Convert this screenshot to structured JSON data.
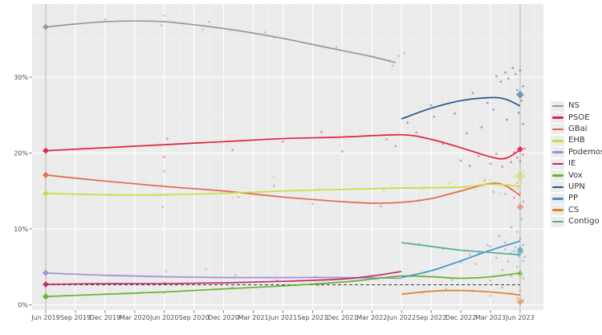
{
  "chart_data": {
    "type": "line",
    "title": "",
    "xlabel": "",
    "ylabel": "",
    "legend_position": "right",
    "panel": {
      "background": "#ebebeb",
      "grid_major": "#ffffff",
      "grid_minor": "#f4f4f4",
      "election_line_color": "#a9a9a9"
    },
    "x_axis": {
      "tick_labels": [
        "Jun 2019",
        "Sep 2019",
        "Dec 2019",
        "Mar 2020",
        "Jun 2020",
        "Sep 2020",
        "Dec 2020",
        "Mar 2021",
        "Jun 2021",
        "Sep 2021",
        "Dec 2021",
        "Mar 2022",
        "Jun 2022",
        "Sep 2022",
        "Dec 2022",
        "Mar 2023",
        "Jun 2023"
      ],
      "tick_values": [
        0,
        1,
        2,
        3,
        4,
        5,
        6,
        7,
        8,
        9,
        10,
        11,
        12,
        13,
        14,
        15,
        16
      ]
    },
    "y_axis": {
      "tick_labels": [
        "0%",
        "10%",
        "20%",
        "30%"
      ],
      "tick_values": [
        0,
        10,
        20,
        30
      ],
      "minor_values": [
        5,
        15,
        25,
        35
      ]
    },
    "ylim": [
      -0.7,
      39.6
    ],
    "threshold_line": {
      "value": 2.65,
      "style": "dashed",
      "color": "#3a3a3a",
      "from": 0,
      "to": 16
    },
    "election_lines": [
      0,
      16
    ],
    "series": [
      {
        "name": "NS",
        "color": "#8f9a9e",
        "start_marker": 36.6,
        "end_marker": null,
        "end_marker_size": 0,
        "trend": [
          [
            0,
            36.6
          ],
          [
            1,
            37.0
          ],
          [
            2,
            37.3
          ],
          [
            3,
            37.4
          ],
          [
            4,
            37.3
          ],
          [
            5,
            36.9
          ],
          [
            6,
            36.4
          ],
          [
            7,
            35.8
          ],
          [
            8,
            35.1
          ],
          [
            9,
            34.3
          ],
          [
            10,
            33.5
          ],
          [
            11,
            32.7
          ],
          [
            11.8,
            31.9
          ]
        ],
        "points": [
          [
            2.0,
            37.6
          ],
          [
            4.0,
            38.1
          ],
          [
            3.9,
            36.8
          ],
          [
            5.3,
            36.3
          ],
          [
            5.5,
            37.3
          ],
          [
            7.4,
            35.9
          ],
          [
            7.7,
            35.2
          ],
          [
            9.8,
            33.9
          ],
          [
            11.6,
            32.2
          ],
          [
            11.9,
            32.8
          ],
          [
            11.7,
            31.5
          ],
          [
            12.1,
            33.2
          ]
        ]
      },
      {
        "name": "PSOE",
        "color": "#e02343",
        "start_marker": 20.3,
        "end_marker": 20.5,
        "end_marker_size": 8,
        "end_marker_opacity": 0.9,
        "trend": [
          [
            0,
            20.3
          ],
          [
            2,
            20.7
          ],
          [
            4,
            21.1
          ],
          [
            6,
            21.5
          ],
          [
            8,
            21.9
          ],
          [
            10,
            22.1
          ],
          [
            12,
            22.4
          ],
          [
            13,
            21.8
          ],
          [
            14,
            20.7
          ],
          [
            15,
            19.5
          ],
          [
            15.5,
            19.3
          ],
          [
            16,
            20.4
          ]
        ],
        "points": [
          [
            4.0,
            19.5
          ],
          [
            4.1,
            21.9
          ],
          [
            6.3,
            20.4
          ],
          [
            8.0,
            21.5
          ],
          [
            9.3,
            22.8
          ],
          [
            10.0,
            20.2
          ],
          [
            11.5,
            21.8
          ],
          [
            11.8,
            20.9
          ],
          [
            12.5,
            22.7
          ],
          [
            13.1,
            24.8
          ],
          [
            13.4,
            21.2
          ],
          [
            14.0,
            19.0
          ],
          [
            14.3,
            18.3
          ],
          [
            14.6,
            19.6
          ],
          [
            15.0,
            18.6
          ],
          [
            15.2,
            19.9
          ],
          [
            15.4,
            18.2
          ],
          [
            15.5,
            19.3
          ],
          [
            15.7,
            18.8
          ],
          [
            15.8,
            20.1
          ],
          [
            15.9,
            19.4
          ],
          [
            16.0,
            18.9
          ],
          [
            16.1,
            19.8
          ],
          [
            16.15,
            20.6
          ]
        ]
      },
      {
        "name": "GBai",
        "color": "#e2674a",
        "start_marker": 17.1,
        "end_marker": 12.9,
        "end_marker_size": 9,
        "end_marker_opacity": 0.55,
        "trend": [
          [
            0,
            17.1
          ],
          [
            2,
            16.3
          ],
          [
            4,
            15.6
          ],
          [
            6,
            15.0
          ],
          [
            8,
            14.2
          ],
          [
            10,
            13.6
          ],
          [
            11,
            13.4
          ],
          [
            12,
            13.5
          ],
          [
            13,
            14.0
          ],
          [
            14,
            15.0
          ],
          [
            15,
            16.0
          ],
          [
            15.5,
            15.7
          ],
          [
            16,
            14.4
          ]
        ],
        "points": [
          [
            4.0,
            17.6
          ],
          [
            3.95,
            12.9
          ],
          [
            6.5,
            14.2
          ],
          [
            7.7,
            15.7
          ],
          [
            9.0,
            13.3
          ],
          [
            11.3,
            13.0
          ],
          [
            12.6,
            13.8
          ],
          [
            13.5,
            14.5
          ],
          [
            14.2,
            15.5
          ],
          [
            14.8,
            16.4
          ],
          [
            15.1,
            14.9
          ],
          [
            15.3,
            15.9
          ],
          [
            15.5,
            14.6
          ],
          [
            15.7,
            15.2
          ],
          [
            15.8,
            14.1
          ],
          [
            15.9,
            16.1
          ],
          [
            16.0,
            14.8
          ],
          [
            16.1,
            13.6
          ]
        ]
      },
      {
        "name": "EHB",
        "color": "#c8dc3f",
        "start_marker": 14.7,
        "end_marker": 17.0,
        "end_marker_size": 13,
        "end_marker_opacity": 0.5,
        "trend": [
          [
            0,
            14.7
          ],
          [
            2,
            14.5
          ],
          [
            4,
            14.5
          ],
          [
            6,
            14.7
          ],
          [
            8,
            15.0
          ],
          [
            10,
            15.2
          ],
          [
            12,
            15.4
          ],
          [
            14,
            15.5
          ],
          [
            15,
            15.9
          ],
          [
            16,
            15.6
          ]
        ],
        "points": [
          [
            3.9,
            15.9
          ],
          [
            6.3,
            14.1
          ],
          [
            7.7,
            16.9
          ],
          [
            9.2,
            15.3
          ],
          [
            11.4,
            15.0
          ],
          [
            12.7,
            15.2
          ],
          [
            13.6,
            16.0
          ],
          [
            14.5,
            15.1
          ],
          [
            15.0,
            16.5
          ],
          [
            15.3,
            14.6
          ],
          [
            15.6,
            15.8
          ],
          [
            15.8,
            16.9
          ],
          [
            15.9,
            15.2
          ],
          [
            16.05,
            16.2
          ],
          [
            16.1,
            17.6
          ]
        ]
      },
      {
        "name": "Podemos",
        "color": "#9e8fd6",
        "start_marker": 4.2,
        "end_marker": null,
        "end_marker_size": 0,
        "trend": [
          [
            0,
            4.2
          ],
          [
            2,
            3.9
          ],
          [
            4,
            3.7
          ],
          [
            6,
            3.6
          ],
          [
            8,
            3.6
          ],
          [
            10,
            3.6
          ],
          [
            12,
            3.5
          ]
        ],
        "points": [
          [
            4.05,
            4.4
          ],
          [
            5.4,
            4.7
          ],
          [
            6.4,
            3.9
          ],
          [
            9.1,
            3.7
          ],
          [
            11.2,
            3.4
          ]
        ]
      },
      {
        "name": "IE",
        "color": "#c22a6c",
        "start_marker": 2.7,
        "end_marker": null,
        "end_marker_size": 0,
        "trend": [
          [
            0,
            2.7
          ],
          [
            2,
            2.8
          ],
          [
            4,
            2.8
          ],
          [
            6,
            2.9
          ],
          [
            8,
            3.1
          ],
          [
            10,
            3.4
          ],
          [
            11,
            3.8
          ],
          [
            12,
            4.4
          ]
        ],
        "points": [
          [
            4.0,
            2.9
          ],
          [
            7.8,
            3.2
          ],
          [
            11.0,
            3.8
          ]
        ]
      },
      {
        "name": "Vox",
        "color": "#62b32e",
        "start_marker": 1.1,
        "end_marker": 4.1,
        "end_marker_size": 8,
        "end_marker_opacity": 0.6,
        "trend": [
          [
            0,
            1.1
          ],
          [
            2,
            1.4
          ],
          [
            4,
            1.7
          ],
          [
            6,
            2.1
          ],
          [
            8,
            2.5
          ],
          [
            10,
            3.0
          ],
          [
            11,
            3.4
          ],
          [
            12,
            3.8
          ],
          [
            13,
            3.7
          ],
          [
            14,
            3.5
          ],
          [
            15,
            3.7
          ],
          [
            16,
            4.2
          ]
        ],
        "points": [
          [
            4.0,
            1.6
          ],
          [
            6.3,
            2.3
          ],
          [
            9.2,
            2.6
          ],
          [
            11.3,
            3.6
          ],
          [
            12.8,
            4.3
          ],
          [
            13.7,
            3.3
          ],
          [
            14.5,
            5.4
          ],
          [
            15.0,
            3.2
          ],
          [
            15.4,
            4.6
          ],
          [
            15.7,
            3.8
          ],
          [
            15.9,
            5.0
          ],
          [
            16.0,
            4.4
          ],
          [
            16.1,
            3.5
          ]
        ]
      },
      {
        "name": "UPN",
        "color": "#1e5b8f",
        "start_marker": null,
        "end_marker": 27.7,
        "end_marker_size": 10,
        "end_marker_opacity": 0.55,
        "trend": [
          [
            12,
            24.5
          ],
          [
            13,
            25.9
          ],
          [
            14,
            26.9
          ],
          [
            15,
            27.3
          ],
          [
            15.5,
            27.1
          ],
          [
            16,
            26.2
          ]
        ],
        "points": [
          [
            12.2,
            24.0
          ],
          [
            13.0,
            26.3
          ],
          [
            13.8,
            25.2
          ],
          [
            14.2,
            22.6
          ],
          [
            14.4,
            27.9
          ],
          [
            14.7,
            23.4
          ],
          [
            14.9,
            26.6
          ],
          [
            15.1,
            25.7
          ],
          [
            15.2,
            30.1
          ],
          [
            15.35,
            29.4
          ],
          [
            15.5,
            30.6
          ],
          [
            15.55,
            24.4
          ],
          [
            15.6,
            29.8
          ],
          [
            15.75,
            31.2
          ],
          [
            15.85,
            30.4
          ],
          [
            15.9,
            28.3
          ],
          [
            15.95,
            25.3
          ],
          [
            16.0,
            30.9
          ],
          [
            16.05,
            26.9
          ],
          [
            16.1,
            28.8
          ],
          [
            16.1,
            23.8
          ]
        ]
      },
      {
        "name": "PP",
        "color": "#4394c6",
        "start_marker": null,
        "end_marker": 7.3,
        "end_marker_size": 8,
        "end_marker_opacity": 0.6,
        "trend": [
          [
            12,
            3.6
          ],
          [
            13,
            4.5
          ],
          [
            14,
            5.8
          ],
          [
            15,
            7.2
          ],
          [
            16,
            8.4
          ]
        ],
        "points": [
          [
            12.4,
            3.9
          ],
          [
            13.2,
            4.7
          ],
          [
            14.0,
            5.6
          ],
          [
            14.6,
            6.8
          ],
          [
            15.0,
            7.7
          ],
          [
            15.3,
            9.1
          ],
          [
            15.5,
            8.2
          ],
          [
            15.6,
            5.7
          ],
          [
            15.7,
            10.2
          ],
          [
            15.8,
            7.1
          ],
          [
            15.9,
            9.6
          ],
          [
            16.0,
            8.7
          ],
          [
            16.05,
            11.3
          ],
          [
            16.1,
            7.9
          ],
          [
            16.15,
            6.3
          ]
        ]
      },
      {
        "name": "CS",
        "color": "#df8024",
        "start_marker": null,
        "end_marker": 0.4,
        "end_marker_size": 9,
        "end_marker_opacity": 0.55,
        "trend": [
          [
            12,
            1.4
          ],
          [
            13,
            1.8
          ],
          [
            14,
            1.9
          ],
          [
            15,
            1.7
          ],
          [
            16,
            1.3
          ]
        ],
        "points": [
          [
            12.7,
            1.6
          ],
          [
            13.5,
            2.1
          ],
          [
            14.4,
            1.8
          ],
          [
            15.0,
            1.2
          ],
          [
            15.4,
            2.3
          ],
          [
            15.7,
            1.5
          ],
          [
            15.9,
            0.9
          ],
          [
            16.0,
            1.9
          ],
          [
            16.1,
            0.6
          ]
        ]
      },
      {
        "name": "Contigo",
        "color": "#55ab9b",
        "start_marker": null,
        "end_marker": 7.0,
        "end_marker_size": 9,
        "end_marker_opacity": 0.6,
        "trend": [
          [
            12,
            8.2
          ],
          [
            13,
            7.7
          ],
          [
            14,
            7.2
          ],
          [
            15,
            6.9
          ],
          [
            16,
            6.6
          ]
        ],
        "points": [
          [
            12.6,
            8.0
          ],
          [
            13.4,
            7.4
          ],
          [
            14.3,
            6.6
          ],
          [
            14.9,
            7.9
          ],
          [
            15.2,
            6.2
          ],
          [
            15.5,
            7.3
          ],
          [
            15.7,
            6.8
          ],
          [
            15.85,
            7.6
          ],
          [
            15.95,
            6.4
          ],
          [
            16.05,
            7.1
          ],
          [
            16.1,
            5.8
          ]
        ]
      }
    ]
  }
}
